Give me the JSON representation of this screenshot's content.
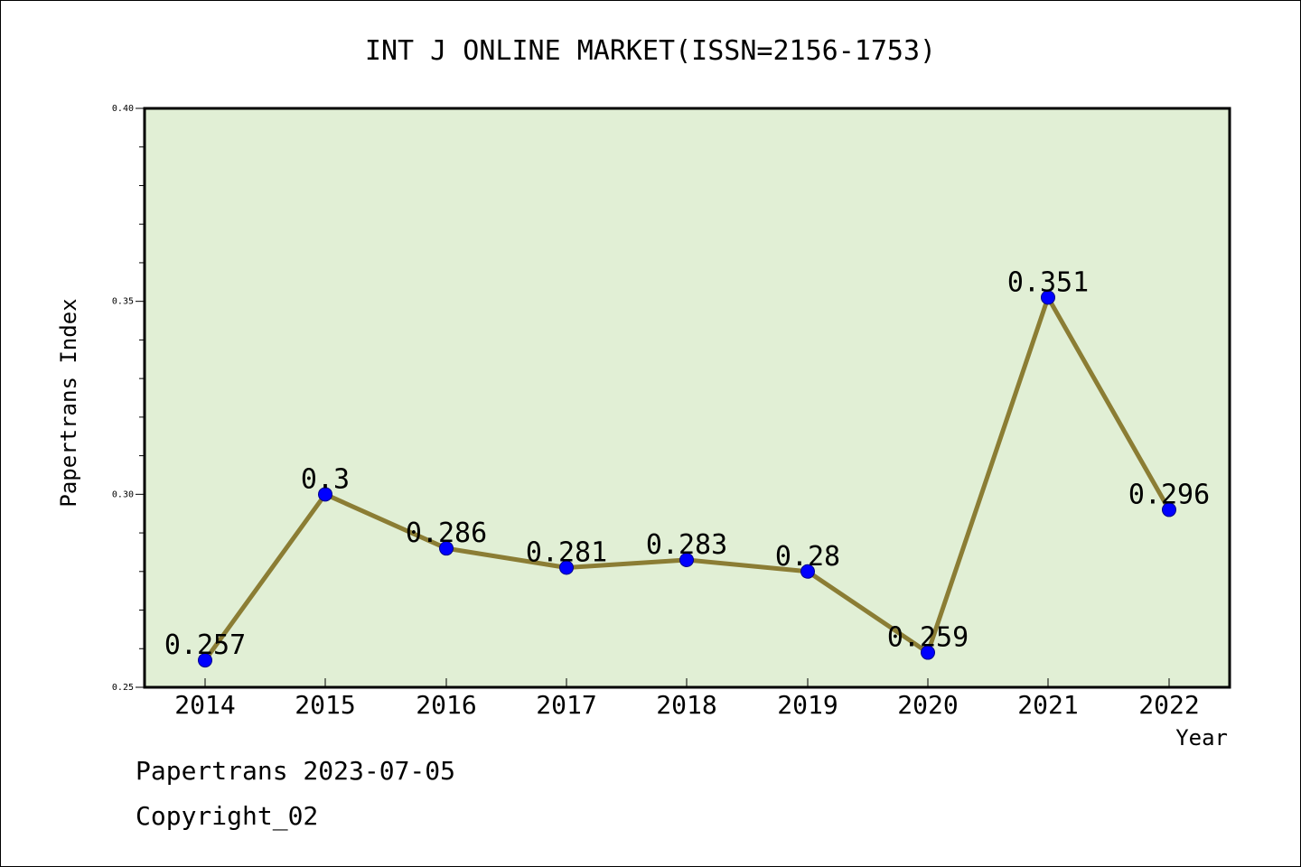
{
  "chart_data": {
    "type": "line",
    "title": "INT J ONLINE MARKET(ISSN=2156-1753)",
    "xlabel": "Year",
    "ylabel": "Papertrans Index",
    "categories": [
      "2014",
      "2015",
      "2016",
      "2017",
      "2018",
      "2019",
      "2020",
      "2021",
      "2022"
    ],
    "series": [
      {
        "values": [
          0.257,
          0.3,
          0.286,
          0.281,
          0.283,
          0.28,
          0.259,
          0.351,
          0.296
        ],
        "labels": [
          "0.257",
          "0.3",
          "0.286",
          "0.281",
          "0.283",
          "0.28",
          "0.259",
          "0.351",
          "0.296"
        ]
      }
    ],
    "ylim": [
      0.25,
      0.4
    ],
    "yticks": [
      "0.25",
      "0.30",
      "0.35",
      "0.40"
    ],
    "grid": false,
    "colors": {
      "plot_background": "#e1efd5",
      "line": "#8b7d34",
      "marker": "#0000ff"
    }
  },
  "footer": {
    "line1": "Papertrans 2023-07-05",
    "line2": "Copyright_02"
  }
}
